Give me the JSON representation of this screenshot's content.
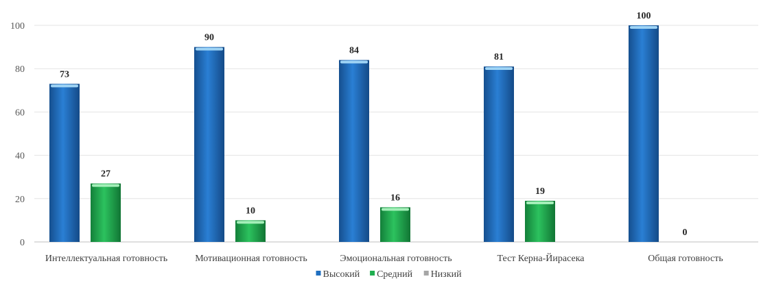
{
  "chart_data": {
    "type": "bar",
    "title": "",
    "xlabel": "",
    "ylabel": "",
    "ylim": [
      0,
      100
    ],
    "yticks": [
      0,
      20,
      40,
      60,
      80,
      100
    ],
    "grid": true,
    "legend_position": "bottom",
    "categories": [
      "Интеллектуальная  готовность",
      "Мотивационная готовность",
      "Эмоциональная готовность",
      "Тест Керна-Йирасека",
      "Общая готовность"
    ],
    "series": [
      {
        "name": "Высокий",
        "color": "#1f6fc0",
        "values": [
          73,
          90,
          84,
          81,
          100
        ]
      },
      {
        "name": "Средний",
        "color": "#1fae4f",
        "values": [
          27,
          10,
          16,
          19,
          0
        ]
      },
      {
        "name": "Низкий",
        "color": "#a6a6a6",
        "values": [
          null,
          null,
          null,
          null,
          null
        ]
      }
    ],
    "value_labels": [
      [
        "73",
        "90",
        "84",
        "81",
        "100"
      ],
      [
        "27",
        "10",
        "16",
        "19",
        "0"
      ]
    ]
  }
}
